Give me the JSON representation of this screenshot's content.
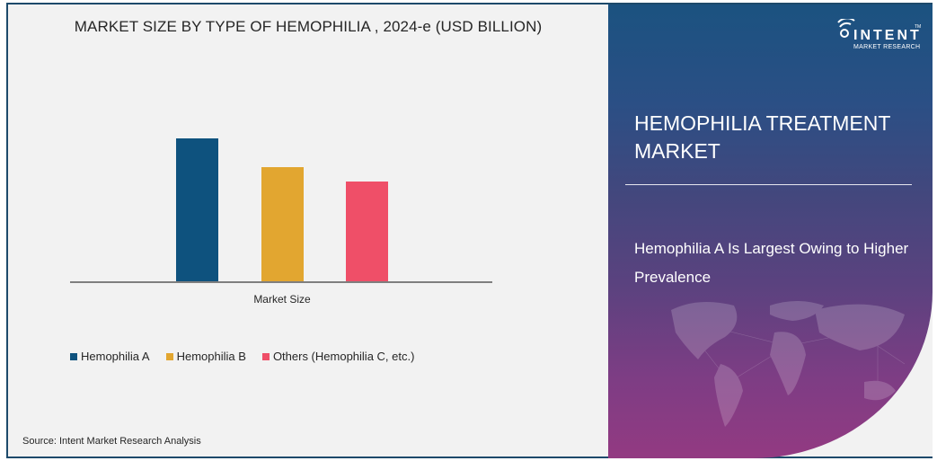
{
  "chart_data": {
    "type": "bar",
    "title": "MARKET SIZE BY TYPE OF HEMOPHILIA , 2024-e (USD BILLION)",
    "categories": [
      "Market Size"
    ],
    "series": [
      {
        "name": "Hemophilia A",
        "values": [
          161
        ],
        "color": "#0e527e"
      },
      {
        "name": "Hemophilia B",
        "values": [
          129
        ],
        "color": "#e2a630"
      },
      {
        "name": "Others (Hemophilia C, etc.)",
        "values": [
          113
        ],
        "color": "#ef4f68"
      }
    ],
    "xlabel": "Market Size",
    "ylabel": "",
    "y_axis_shown": false,
    "grid": false,
    "legend_position": "bottom",
    "note": "Values are relative bar heights in pixels; no numeric axis shown"
  },
  "chart": {
    "title": "MARKET SIZE BY TYPE OF HEMOPHILIA , 2024-e (USD BILLION)",
    "x_label": "Market Size",
    "legend": [
      {
        "label": "Hemophilia A",
        "color": "#0e527e"
      },
      {
        "label": "Hemophilia B",
        "color": "#e2a630"
      },
      {
        "label": "Others (Hemophilia C, etc.)",
        "color": "#ef4f68"
      }
    ]
  },
  "source": "Source: Intent Market Research Analysis",
  "panel": {
    "logo_word": "INTENT",
    "logo_sub": "MARKET RESEARCH",
    "logo_tm": "TM",
    "title": "HEMOPHILIA TREATMENT MARKET",
    "subtitle": "Hemophilia A Is Largest Owing to Higher Prevalence"
  }
}
